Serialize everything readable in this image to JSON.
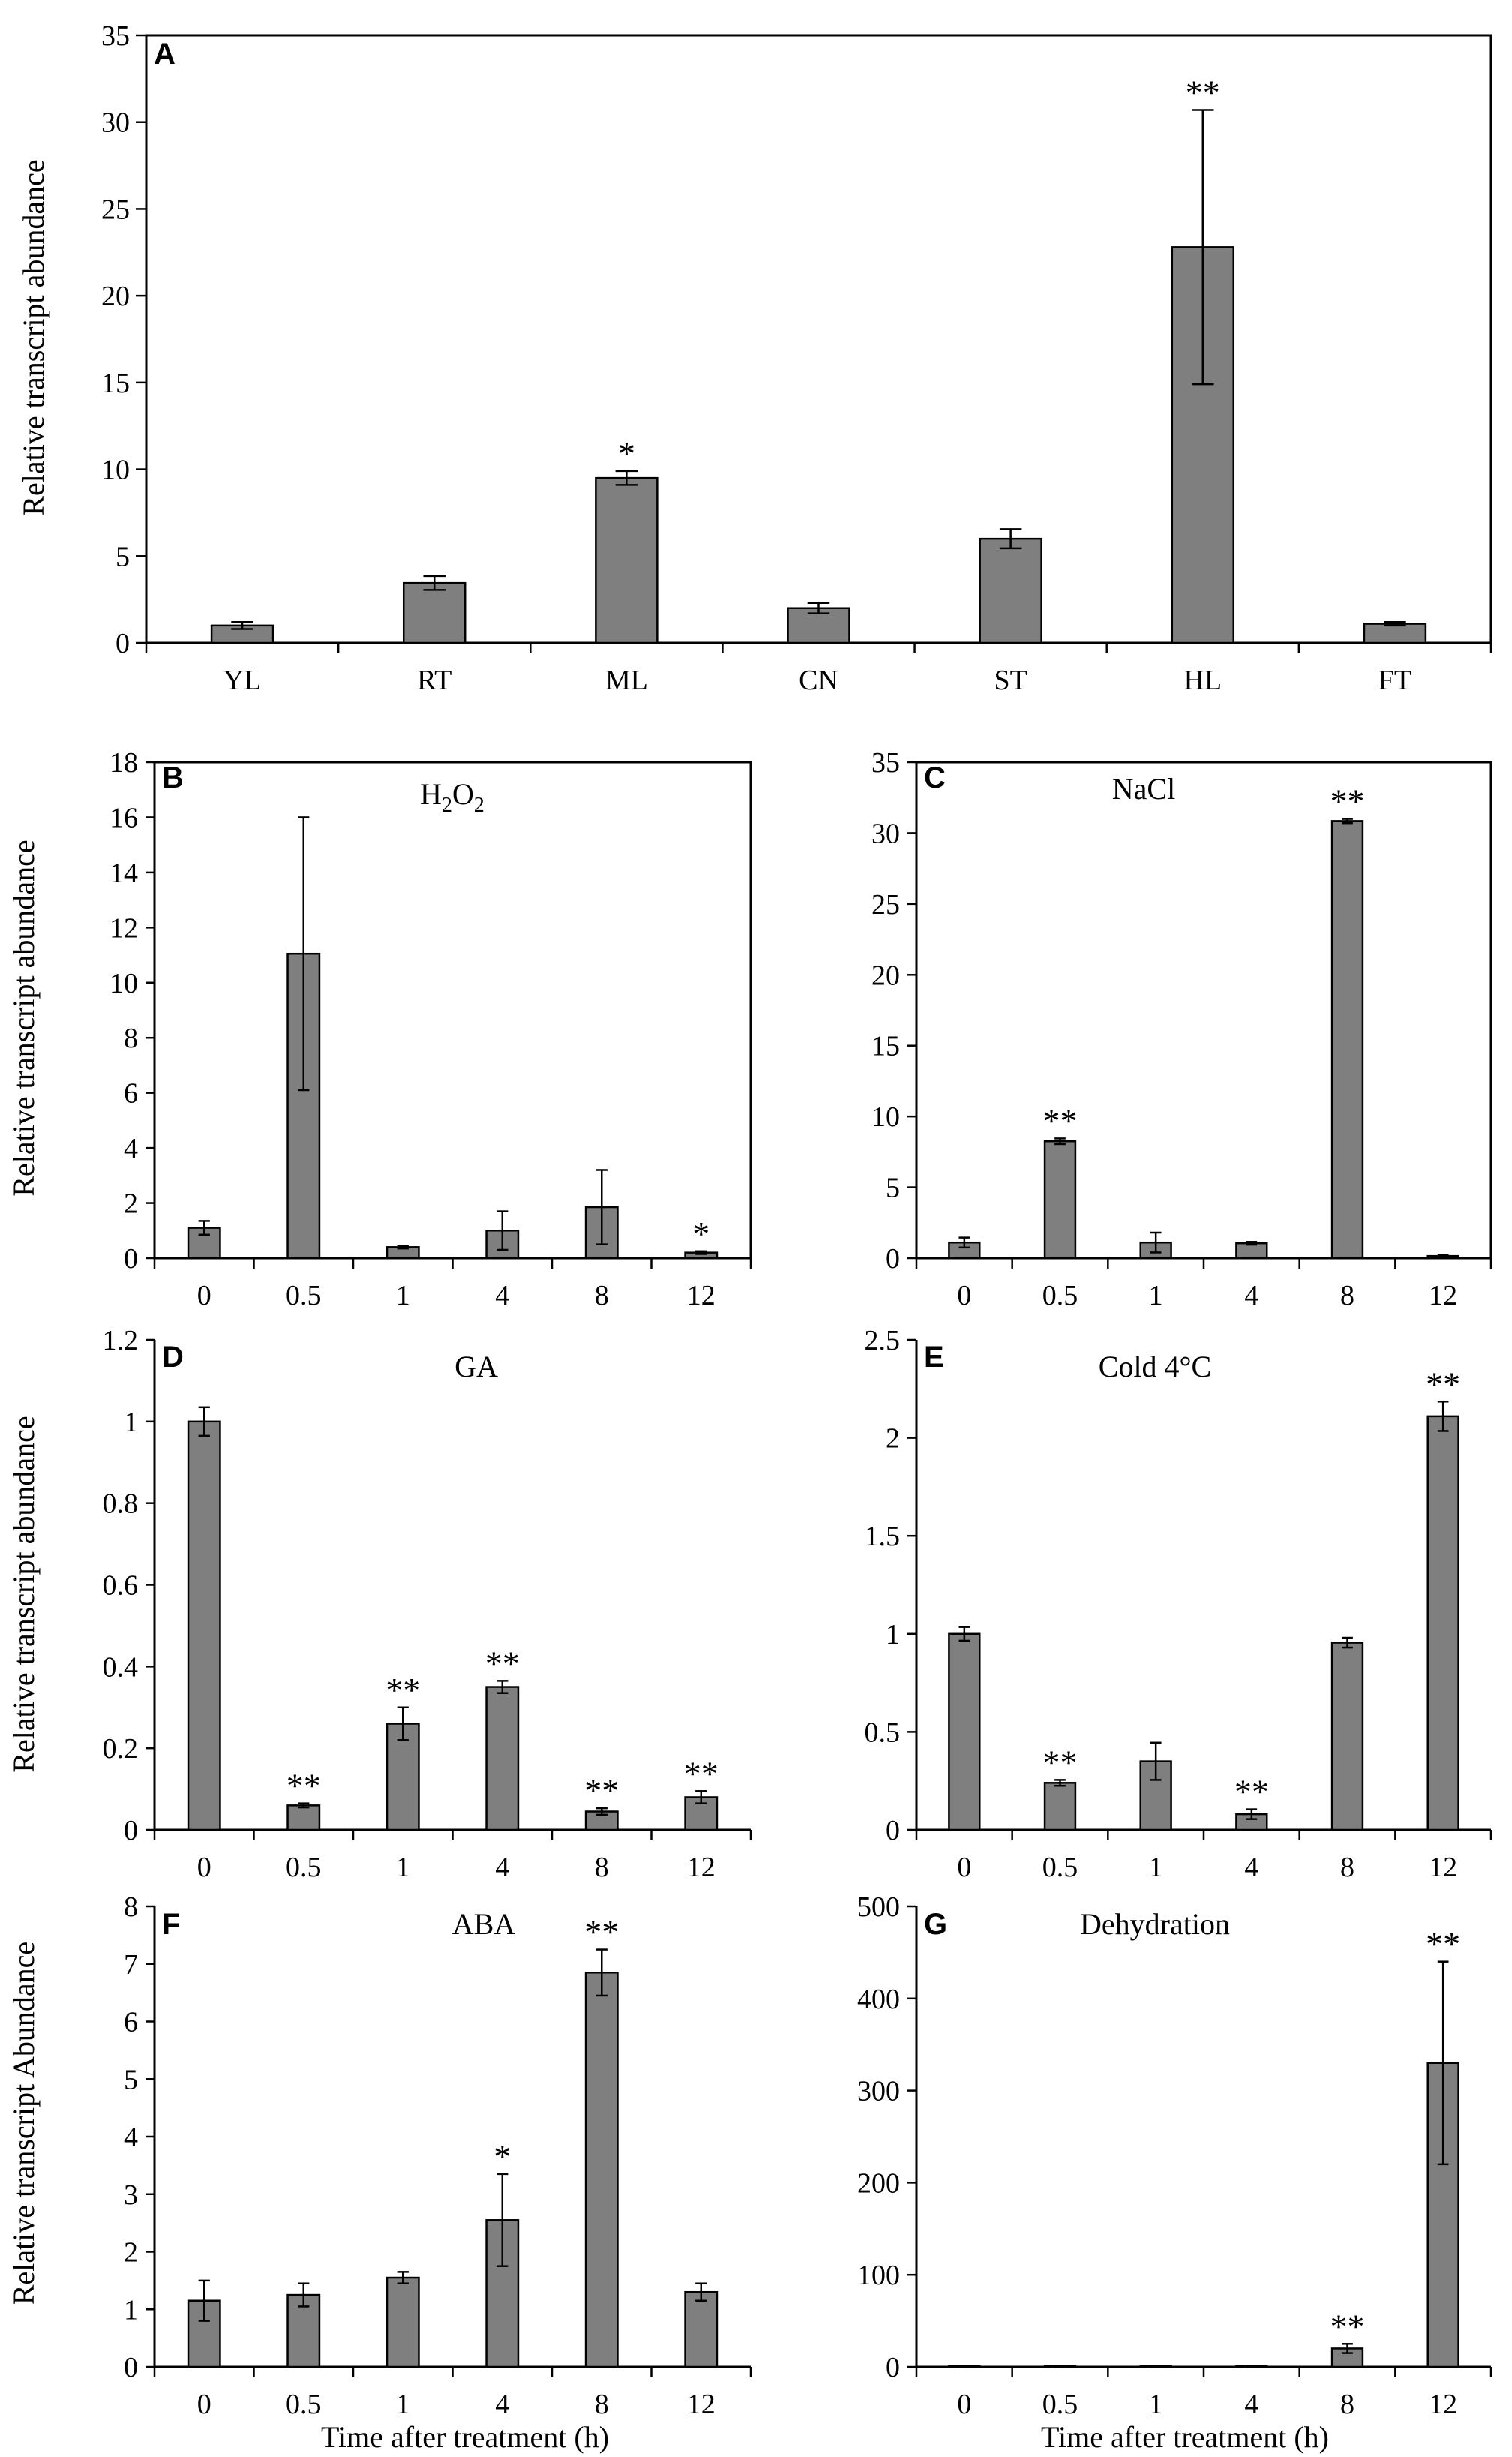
{
  "figure": {
    "xlabel_time": "Time after treatment (h)",
    "ylabel_default": "Relative transcript abundance",
    "ylabel_F": "Relative transcript Abundance"
  },
  "chart_data": [
    {
      "id": "A",
      "type": "bar",
      "panel_label": "A",
      "title": "",
      "xlabel": "",
      "ylabel": "Relative transcript abundance",
      "categories": [
        "YL",
        "RT",
        "ML",
        "CN",
        "ST",
        "HL",
        "FT"
      ],
      "values": [
        1.0,
        3.45,
        9.5,
        2.0,
        6.0,
        22.8,
        1.1
      ],
      "errors": [
        0.2,
        0.4,
        0.4,
        0.3,
        0.55,
        7.9,
        0.1
      ],
      "significance": [
        "",
        "",
        "*",
        "",
        "",
        "**",
        ""
      ],
      "ylim": [
        0,
        35
      ],
      "yticks": [
        0,
        5,
        10,
        15,
        20,
        25,
        30,
        35
      ],
      "grid": false
    },
    {
      "id": "B",
      "type": "bar",
      "panel_label": "B",
      "title": "H2O2",
      "title_parts": [
        "H",
        "2",
        "O",
        "2"
      ],
      "xlabel": "",
      "ylabel": "Relative transcript abundance",
      "categories": [
        "0",
        "0.5",
        "1",
        "4",
        "8",
        "12"
      ],
      "values": [
        1.1,
        11.05,
        0.4,
        1.0,
        1.85,
        0.2
      ],
      "errors": [
        0.25,
        4.95,
        0.05,
        0.7,
        1.35,
        0.05
      ],
      "significance": [
        "",
        "",
        "",
        "",
        "",
        "*"
      ],
      "ylim": [
        0,
        18
      ],
      "yticks": [
        0,
        2,
        4,
        6,
        8,
        10,
        12,
        14,
        16,
        18
      ],
      "grid": false
    },
    {
      "id": "C",
      "type": "bar",
      "panel_label": "C",
      "title": "NaCl",
      "xlabel": "",
      "ylabel": "",
      "categories": [
        "0",
        "0.5",
        "1",
        "4",
        "8",
        "12"
      ],
      "values": [
        1.1,
        8.25,
        1.1,
        1.05,
        30.85,
        0.15
      ],
      "errors": [
        0.35,
        0.2,
        0.7,
        0.1,
        0.15,
        0.05
      ],
      "significance": [
        "",
        "**",
        "",
        "",
        "**",
        ""
      ],
      "ylim": [
        0,
        35
      ],
      "yticks": [
        0,
        5,
        10,
        15,
        20,
        25,
        30,
        35
      ],
      "grid": false
    },
    {
      "id": "D",
      "type": "bar",
      "panel_label": "D",
      "title": "GA",
      "xlabel": "",
      "ylabel": "Relative transcript abundance",
      "categories": [
        "0",
        "0.5",
        "1",
        "4",
        "8",
        "12"
      ],
      "values": [
        1.0,
        0.06,
        0.26,
        0.35,
        0.045,
        0.08
      ],
      "errors": [
        0.035,
        0.005,
        0.04,
        0.015,
        0.008,
        0.015
      ],
      "significance": [
        "",
        "**",
        "**",
        "**",
        "**",
        "**"
      ],
      "ylim": [
        0,
        1.2
      ],
      "yticks": [
        0,
        0.2,
        0.4,
        0.6,
        0.8,
        1,
        1.2
      ],
      "grid": false
    },
    {
      "id": "E",
      "type": "bar",
      "panel_label": "E",
      "title": "Cold 4°C",
      "xlabel": "",
      "ylabel": "",
      "categories": [
        "0",
        "0.5",
        "1",
        "4",
        "8",
        "12"
      ],
      "values": [
        1.0,
        0.24,
        0.35,
        0.08,
        0.955,
        2.11
      ],
      "errors": [
        0.035,
        0.015,
        0.095,
        0.025,
        0.025,
        0.075
      ],
      "significance": [
        "",
        "**",
        "",
        "**",
        "",
        "**"
      ],
      "ylim": [
        0,
        2.5
      ],
      "yticks": [
        0,
        0.5,
        1,
        1.5,
        2,
        2.5
      ],
      "grid": false
    },
    {
      "id": "F",
      "type": "bar",
      "panel_label": "F",
      "title": "ABA",
      "xlabel": "Time after treatment (h)",
      "ylabel": "Relative transcript Abundance",
      "categories": [
        "0",
        "0.5",
        "1",
        "4",
        "8",
        "12"
      ],
      "values": [
        1.15,
        1.25,
        1.55,
        2.55,
        6.85,
        1.3
      ],
      "errors": [
        0.35,
        0.2,
        0.1,
        0.8,
        0.4,
        0.15
      ],
      "significance": [
        "",
        "",
        "",
        "*",
        "**",
        ""
      ],
      "ylim": [
        0,
        8
      ],
      "yticks": [
        0,
        1,
        2,
        3,
        4,
        5,
        6,
        7,
        8
      ],
      "grid": false
    },
    {
      "id": "G",
      "type": "bar",
      "panel_label": "G",
      "title": "Dehydration",
      "xlabel": "Time after treatment (h)",
      "ylabel": "",
      "categories": [
        "0",
        "0.5",
        "1",
        "4",
        "8",
        "12"
      ],
      "values": [
        1.0,
        1.0,
        1.0,
        1.0,
        20.0,
        330.0
      ],
      "errors": [
        0.3,
        0.3,
        0.3,
        0.3,
        5.0,
        110.0
      ],
      "significance": [
        "",
        "",
        "",
        "",
        "**",
        "**"
      ],
      "ylim": [
        0,
        500
      ],
      "yticks": [
        0,
        100,
        200,
        300,
        400,
        500
      ],
      "grid": false
    }
  ]
}
